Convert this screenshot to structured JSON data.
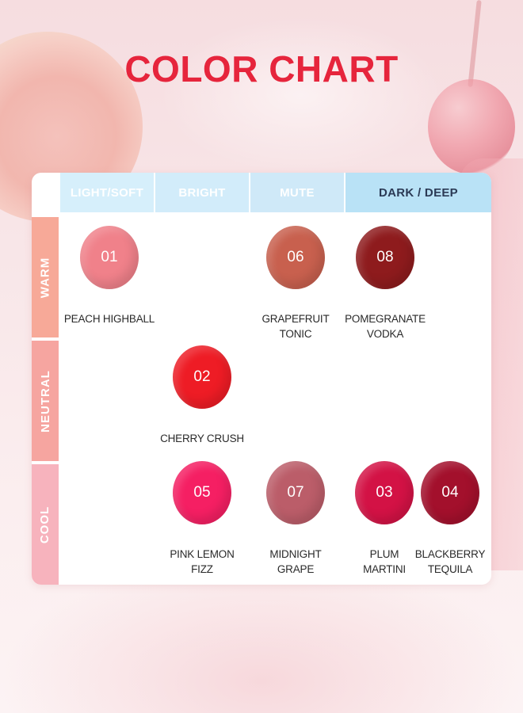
{
  "title": "COLOR CHART",
  "columns": [
    "LIGHT/SOFT",
    "BRIGHT",
    "MUTE",
    "DARK / DEEP"
  ],
  "rows": [
    "WARM",
    "NEUTRAL",
    "COOL"
  ],
  "swatches": [
    {
      "number": "01",
      "name_line1": "PEACH HIGHBALL",
      "name_line2": "",
      "color": "#f0818a",
      "tone": "WARM",
      "category": "LIGHT/SOFT"
    },
    {
      "number": "06",
      "name_line1": "GRAPEFRUIT",
      "name_line2": "TONIC",
      "color": "#c8604e",
      "tone": "WARM",
      "category": "MUTE"
    },
    {
      "number": "08",
      "name_line1": "POMEGRANATE",
      "name_line2": "VODKA",
      "color": "#8e1b1d",
      "tone": "WARM",
      "category": "DARK / DEEP"
    },
    {
      "number": "02",
      "name_line1": "CHERRY CRUSH",
      "name_line2": "",
      "color": "#ee1c25",
      "tone": "NEUTRAL",
      "category": "BRIGHT"
    },
    {
      "number": "05",
      "name_line1": "PINK LEMON",
      "name_line2": "FIZZ",
      "color": "#f51f63",
      "tone": "COOL",
      "category": "BRIGHT"
    },
    {
      "number": "07",
      "name_line1": "MIDNIGHT",
      "name_line2": "GRAPE",
      "color": "#bb5d69",
      "tone": "COOL",
      "category": "MUTE"
    },
    {
      "number": "03",
      "name_line1": "PLUM",
      "name_line2": "MARTINI",
      "color": "#d31245",
      "tone": "COOL",
      "category": "DARK / DEEP"
    },
    {
      "number": "04",
      "name_line1": "BLACKBERRY",
      "name_line2": "TEQUILA",
      "color": "#a3102c",
      "tone": "COOL",
      "category": "DARK / DEEP"
    }
  ],
  "colors": {
    "title": "#e6253c",
    "warm_header": "#f7a998",
    "neutral_header": "#f6a5a0",
    "cool_header": "#f7b3bd",
    "column_header": "#cfe9f8"
  }
}
